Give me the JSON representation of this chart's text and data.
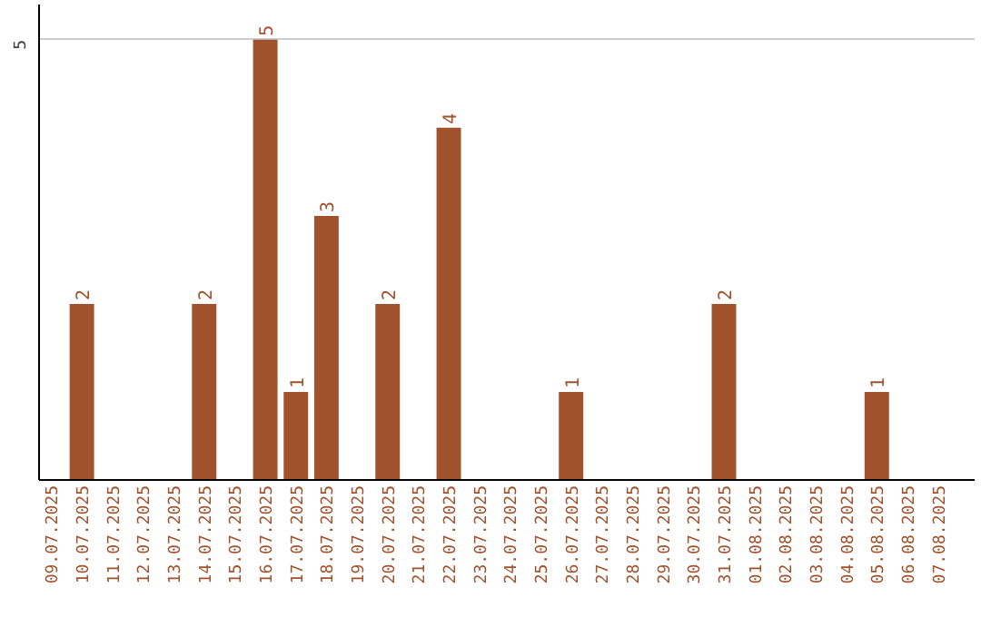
{
  "chart_data": {
    "type": "bar",
    "categories": [
      "09.07.2025",
      "10.07.2025",
      "11.07.2025",
      "12.07.2025",
      "13.07.2025",
      "14.07.2025",
      "15.07.2025",
      "16.07.2025",
      "17.07.2025",
      "18.07.2025",
      "19.07.2025",
      "20.07.2025",
      "21.07.2025",
      "22.07.2025",
      "23.07.2025",
      "24.07.2025",
      "25.07.2025",
      "26.07.2025",
      "27.07.2025",
      "28.07.2025",
      "29.07.2025",
      "30.07.2025",
      "31.07.2025",
      "01.08.2025",
      "02.08.2025",
      "03.08.2025",
      "04.08.2025",
      "05.08.2025",
      "06.08.2025",
      "07.08.2025"
    ],
    "values": [
      0,
      2,
      0,
      0,
      0,
      2,
      0,
      5,
      1,
      3,
      0,
      2,
      0,
      4,
      0,
      0,
      0,
      1,
      0,
      0,
      0,
      0,
      2,
      0,
      0,
      0,
      0,
      1,
      0,
      0
    ],
    "value_labels": [
      null,
      "2",
      null,
      null,
      null,
      "2",
      null,
      "5",
      "1",
      "3",
      null,
      "2",
      null,
      "4",
      null,
      null,
      null,
      "1",
      null,
      null,
      null,
      null,
      "2",
      null,
      null,
      null,
      null,
      "1",
      null,
      null
    ],
    "color": "#a0522d",
    "ylim": [
      0,
      5.4
    ],
    "yticks": [
      5
    ],
    "grid": "y"
  }
}
